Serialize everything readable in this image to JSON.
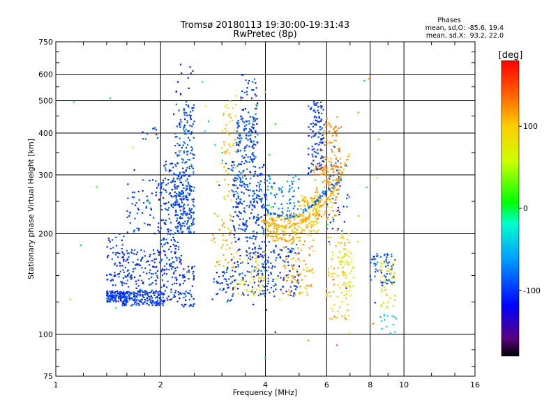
{
  "chart_data": {
    "type": "scatter",
    "title": "Tromsø 20180113 19:30:00-19:31:43",
    "subtitle": "RwPretec (8p)",
    "xlabel": "Frequency [MHz]",
    "ylabel": "Stationary phase Virtual Height [km]",
    "x_scale": "log",
    "y_scale": "log",
    "xlim": [
      1,
      16
    ],
    "ylim": [
      75,
      750
    ],
    "x_ticks": [
      1,
      2,
      4,
      6,
      8,
      10,
      16
    ],
    "y_ticks": [
      75,
      100,
      200,
      300,
      400,
      500,
      600,
      750
    ],
    "grid": true,
    "phase_box": {
      "title": "Phases",
      "line1": "mean, sd,O: -85.6, 19.4",
      "line2": "mean, sd,X:  93.2, 22.0"
    },
    "colorbar": {
      "label": "[deg]",
      "ticks": [
        100,
        0,
        -100
      ],
      "range": [
        -180,
        180
      ]
    },
    "clusters": [
      {
        "x": [
          1.4,
          1.6
        ],
        "y": [
          125,
          135
        ],
        "phase": -100,
        "n": 120
      },
      {
        "x": [
          1.4,
          1.6
        ],
        "y": [
          140,
          200
        ],
        "phase": -100,
        "n": 70
      },
      {
        "x": [
          1.55,
          2.05
        ],
        "y": [
          122,
          135
        ],
        "phase": -100,
        "n": 170
      },
      {
        "x": [
          1.6,
          2.0
        ],
        "y": [
          135,
          180
        ],
        "phase": -100,
        "n": 100
      },
      {
        "x": [
          1.6,
          2.0
        ],
        "y": [
          200,
          290
        ],
        "phase": -100,
        "n": 60
      },
      {
        "x": [
          1.75,
          2.0
        ],
        "y": [
          380,
          420
        ],
        "phase": -100,
        "n": 10
      },
      {
        "x": [
          2.0,
          2.3
        ],
        "y": [
          125,
          200
        ],
        "phase": -100,
        "n": 120
      },
      {
        "x": [
          2.0,
          2.4
        ],
        "y": [
          200,
          330
        ],
        "phase": -100,
        "n": 150
      },
      {
        "x": [
          2.2,
          2.5
        ],
        "y": [
          200,
          280
        ],
        "phase": -95,
        "n": 120
      },
      {
        "x": [
          2.2,
          2.5
        ],
        "y": [
          280,
          500
        ],
        "phase": -90,
        "n": 120
      },
      {
        "x": [
          2.3,
          2.5
        ],
        "y": [
          120,
          160
        ],
        "phase": -100,
        "n": 50
      },
      {
        "x": [
          2.2,
          2.5
        ],
        "y": [
          500,
          650
        ],
        "phase": -100,
        "n": 12
      },
      {
        "x": [
          2.8,
          3.2
        ],
        "y": [
          125,
          160
        ],
        "phase": -100,
        "n": 40
      },
      {
        "x": [
          2.8,
          3.2
        ],
        "y": [
          160,
          230
        ],
        "phase": 110,
        "n": 40
      },
      {
        "x": [
          3.0,
          3.3
        ],
        "y": [
          250,
          400
        ],
        "phase": 100,
        "n": 40
      },
      {
        "x": [
          3.0,
          3.3
        ],
        "y": [
          400,
          520
        ],
        "phase": 95,
        "n": 20
      },
      {
        "x": [
          3.2,
          4.0
        ],
        "y": [
          200,
          330
        ],
        "phase": -95,
        "n": 200
      },
      {
        "x": [
          3.3,
          3.8
        ],
        "y": [
          330,
          450
        ],
        "phase": -95,
        "n": 110
      },
      {
        "x": [
          3.4,
          3.8
        ],
        "y": [
          450,
          600
        ],
        "phase": -100,
        "n": 30
      },
      {
        "x": [
          3.2,
          4.0
        ],
        "y": [
          130,
          200
        ],
        "phase": -100,
        "n": 130
      },
      {
        "x": [
          3.2,
          4.0
        ],
        "y": [
          130,
          180
        ],
        "phase": 90,
        "n": 60
      },
      {
        "x": [
          4.0,
          5.0
        ],
        "y": [
          190,
          230
        ],
        "phase": 110,
        "n": 130
      },
      {
        "x": [
          4.0,
          5.0
        ],
        "y": [
          130,
          190
        ],
        "phase": -100,
        "n": 100
      },
      {
        "x": [
          4.0,
          5.0
        ],
        "y": [
          230,
          300
        ],
        "phase": -70,
        "n": 70
      },
      {
        "x": [
          4.5,
          5.5
        ],
        "y": [
          130,
          200
        ],
        "phase": 110,
        "n": 90
      },
      {
        "x": [
          5.0,
          5.7
        ],
        "y": [
          200,
          260
        ],
        "phase": 100,
        "n": 120
      },
      {
        "x": [
          5.3,
          5.9
        ],
        "y": [
          300,
          500
        ],
        "phase": -100,
        "n": 110
      },
      {
        "x": [
          5.5,
          6.5
        ],
        "y": [
          220,
          320
        ],
        "phase": 120,
        "n": 110
      },
      {
        "x": [
          5.8,
          6.6
        ],
        "y": [
          300,
          450
        ],
        "phase": 125,
        "n": 80
      },
      {
        "x": [
          6.0,
          7.0
        ],
        "y": [
          110,
          200
        ],
        "phase": 100,
        "n": 80
      },
      {
        "x": [
          6.0,
          7.0
        ],
        "y": [
          200,
          330
        ],
        "phase": -100,
        "n": 40
      },
      {
        "x": [
          6.5,
          7.2
        ],
        "y": [
          130,
          180
        ],
        "phase": 70,
        "n": 40
      },
      {
        "x": [
          8.0,
          9.5
        ],
        "y": [
          140,
          175
        ],
        "phase": -90,
        "n": 60
      },
      {
        "x": [
          8.5,
          9.5
        ],
        "y": [
          115,
          165
        ],
        "phase": 90,
        "n": 40
      },
      {
        "x": [
          8.5,
          9.5
        ],
        "y": [
          100,
          115
        ],
        "phase": -40,
        "n": 15
      },
      {
        "x": [
          1.1,
          8.5
        ],
        "y": [
          85,
          620
        ],
        "phase": 0,
        "n": 60
      }
    ],
    "curves": [
      {
        "x": [
          3.0,
          3.4,
          3.8,
          4.1,
          4.5,
          5.0,
          5.5,
          5.8,
          6.2,
          6.6
        ],
        "y": [
          330,
          290,
          260,
          230,
          225,
          228,
          245,
          260,
          275,
          290
        ],
        "phase": -80
      },
      {
        "x": [
          3.9,
          4.3,
          4.8,
          5.3,
          5.8,
          6.2,
          6.6,
          7.0
        ],
        "y": [
          220,
          210,
          212,
          222,
          240,
          265,
          300,
          350
        ],
        "phase": 110
      }
    ]
  }
}
